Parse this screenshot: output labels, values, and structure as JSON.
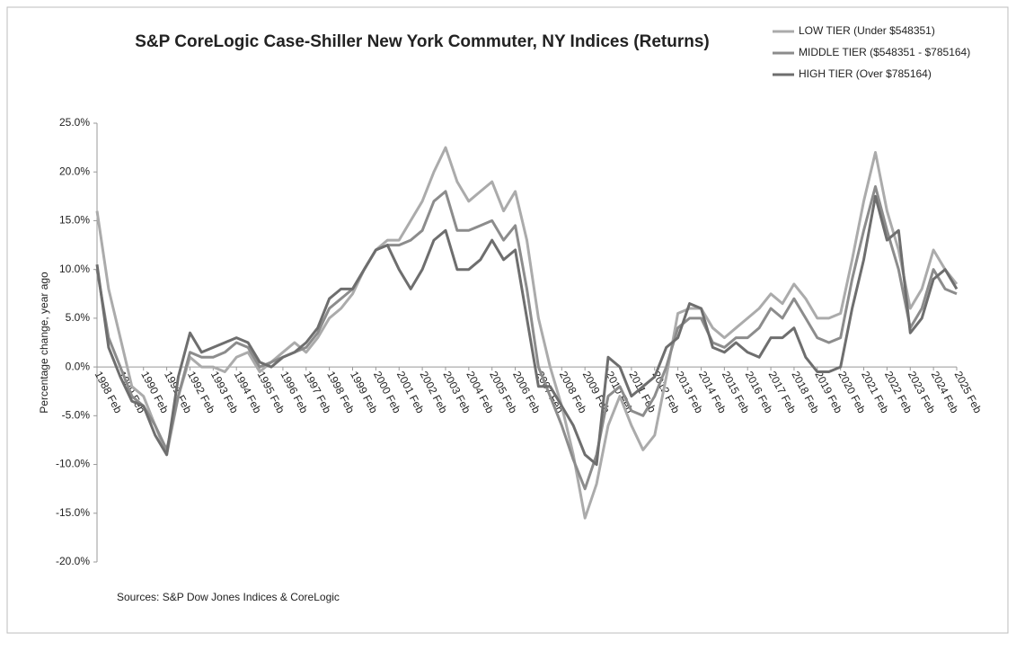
{
  "chart_data": {
    "type": "line",
    "title": "S&P CoreLogic Case-Shiller New York Commuter, NY Indices (Returns)",
    "y_label": "Percentage change, year ago",
    "source": "Sources: S&P Dow Jones Indices & CoreLogic",
    "legend_position": "top-right",
    "grid": false,
    "ylim": [
      -20,
      25
    ],
    "yticks": [
      {
        "value": -20,
        "label": "-20.0%"
      },
      {
        "value": -15,
        "label": "-15.0%"
      },
      {
        "value": -10,
        "label": "-10.0%"
      },
      {
        "value": -5,
        "label": "-5.0%"
      },
      {
        "value": 0,
        "label": "0.0%"
      },
      {
        "value": 5,
        "label": "5.0%"
      },
      {
        "value": 10,
        "label": "10.0%"
      },
      {
        "value": 15,
        "label": "15.0%"
      },
      {
        "value": 20,
        "label": "20.0%"
      },
      {
        "value": 25,
        "label": "25.0%"
      }
    ],
    "categories": [
      "1988 Feb",
      null,
      "1989 Feb",
      null,
      "1990 Feb",
      null,
      "1991 Feb",
      null,
      "1992 Feb",
      null,
      "1993 Feb",
      null,
      "1994 Feb",
      null,
      "1995 Feb",
      null,
      "1996 Feb",
      null,
      "1997 Feb",
      null,
      "1998 Feb",
      null,
      "1999 Feb",
      null,
      "2000 Feb",
      null,
      "2001 Feb",
      null,
      "2002 Feb",
      null,
      "2003 Feb",
      null,
      "2004 Feb",
      null,
      "2005 Feb",
      null,
      "2006 Feb",
      null,
      "2007 Feb",
      null,
      "2008 Feb",
      null,
      "2009 Feb",
      null,
      "2010 Feb",
      null,
      "2011 Feb",
      null,
      "2012 Feb",
      null,
      "2013 Feb",
      null,
      "2014 Feb",
      null,
      "2015 Feb",
      null,
      "2016 Feb",
      null,
      "2017 Feb",
      null,
      "2018 Feb",
      null,
      "2019 Feb",
      null,
      "2020 Feb",
      null,
      "2021 Feb",
      null,
      "2022 Feb",
      null,
      "2023 Feb",
      null,
      "2024 Feb",
      null,
      "2025 Feb"
    ],
    "series": [
      {
        "name": "LOW TIER (Under $548351)",
        "color": "#ababab",
        "values": [
          16,
          8,
          3,
          -2,
          -3,
          -6,
          -9,
          -3,
          1,
          0,
          0,
          -0.5,
          1,
          1.5,
          -0.5,
          0.5,
          1.5,
          2.5,
          1.5,
          3,
          5,
          6,
          7.5,
          10,
          12,
          13,
          13,
          15,
          17,
          20,
          22.5,
          19,
          17,
          18,
          19,
          16,
          18,
          13,
          5,
          0,
          -4,
          -9,
          -15.5,
          -12,
          -6,
          -3,
          -6,
          -8.5,
          -7,
          -1,
          5.5,
          6,
          6,
          4,
          3,
          4,
          5,
          6,
          7.5,
          6.5,
          8.5,
          7,
          5,
          5,
          5.5,
          11,
          17,
          22,
          16,
          12,
          6,
          8,
          12,
          10,
          8.5
        ]
      },
      {
        "name": "MIDDLE TIER ($548351 - $785164)",
        "color": "#8c8c8c",
        "values": [
          10,
          3,
          0,
          -3,
          -4,
          -6,
          -8.5,
          -3,
          1.5,
          1,
          1,
          1.5,
          2.5,
          2,
          0,
          0.5,
          1,
          1.5,
          2,
          3.5,
          6,
          7,
          8,
          10,
          12,
          12.5,
          12.5,
          13,
          14,
          17,
          18,
          14,
          14,
          14.5,
          15,
          13,
          14.5,
          8,
          0,
          -3,
          -6,
          -9.5,
          -12.5,
          -9,
          -3,
          -2,
          -4.5,
          -5,
          -3,
          0,
          4,
          5,
          5,
          2.5,
          2,
          3,
          3,
          4,
          6,
          5,
          7,
          5,
          3,
          2.5,
          3,
          9,
          14,
          18.5,
          14,
          10,
          4,
          6,
          10,
          8,
          7.5
        ]
      },
      {
        "name": "HIGH TIER (Over $785164)",
        "color": "#6e6e6e",
        "values": [
          10.5,
          2,
          -1,
          -3.5,
          -4,
          -7,
          -9,
          -1,
          3.5,
          1.5,
          2,
          2.5,
          3,
          2.5,
          0.5,
          0,
          1,
          1.5,
          2.5,
          4,
          7,
          8,
          8,
          10,
          12,
          12.5,
          10,
          8,
          10,
          13,
          14,
          10,
          10,
          11,
          13,
          11,
          12,
          5,
          -2,
          -2,
          -4,
          -6,
          -9,
          -10,
          1,
          0,
          -3,
          -2,
          -1,
          2,
          3,
          6.5,
          6,
          2,
          1.5,
          2.5,
          1.5,
          1,
          3,
          3,
          4,
          1,
          -0.5,
          -0.5,
          0,
          6,
          11,
          17.5,
          13,
          14,
          3.5,
          5,
          9,
          10,
          8
        ]
      }
    ]
  }
}
